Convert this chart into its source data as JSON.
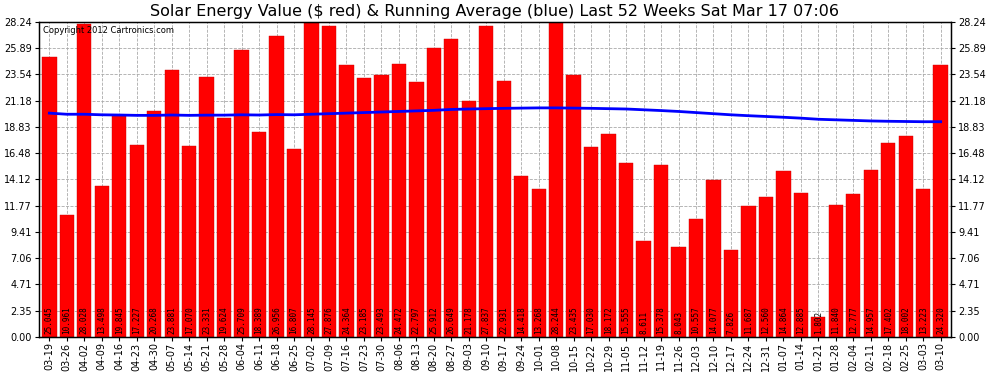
{
  "title": "Solar Energy Value ($ red) & Running Average (blue) Last 52 Weeks Sat Mar 17 07:06",
  "copyright": "Copyright 2012 Cartronics.com",
  "bar_color": "#FF0000",
  "line_color": "#0000FF",
  "background_color": "#FFFFFF",
  "grid_color": "#AAAAAA",
  "yticks": [
    0.0,
    2.35,
    4.71,
    7.06,
    9.41,
    11.77,
    14.12,
    16.48,
    18.83,
    21.18,
    23.54,
    25.89,
    28.24
  ],
  "categories": [
    "03-19",
    "03-26",
    "04-02",
    "04-09",
    "04-16",
    "04-23",
    "04-30",
    "05-07",
    "05-14",
    "05-21",
    "05-28",
    "06-04",
    "06-11",
    "06-18",
    "06-25",
    "07-02",
    "07-09",
    "07-16",
    "07-23",
    "07-30",
    "08-06",
    "08-13",
    "08-20",
    "08-27",
    "09-03",
    "09-10",
    "09-17",
    "09-24",
    "10-01",
    "10-08",
    "10-15",
    "10-22",
    "10-29",
    "11-05",
    "11-12",
    "11-19",
    "11-26",
    "12-03",
    "12-10",
    "12-17",
    "12-24",
    "12-31",
    "01-07",
    "01-14",
    "01-21",
    "01-28",
    "02-04",
    "02-11",
    "02-18",
    "02-25",
    "03-03",
    "03-10"
  ],
  "bar_values": [
    25.045,
    10.961,
    28.028,
    13.498,
    19.845,
    17.227,
    20.268,
    23.881,
    17.07,
    23.331,
    19.624,
    25.709,
    18.389,
    26.956,
    16.807,
    28.145,
    27.876,
    24.364,
    23.185,
    23.493,
    24.472,
    22.797,
    25.912,
    26.649,
    21.178,
    27.837,
    22.931,
    14.418,
    13.268,
    28.244,
    23.435,
    17.03,
    18.172,
    15.555,
    8.611,
    15.378,
    8.043,
    10.557,
    14.077,
    7.826,
    11.687,
    12.56,
    14.864,
    12.885,
    1.802,
    11.84,
    12.777,
    14.957,
    17.402,
    18.002,
    13.223,
    24.32
  ],
  "running_avg": [
    20.05,
    19.95,
    19.95,
    19.9,
    19.88,
    19.85,
    19.85,
    19.88,
    19.85,
    19.87,
    19.87,
    19.9,
    19.88,
    19.92,
    19.9,
    19.95,
    20.0,
    20.05,
    20.1,
    20.15,
    20.2,
    20.25,
    20.3,
    20.38,
    20.42,
    20.45,
    20.48,
    20.5,
    20.52,
    20.52,
    20.5,
    20.48,
    20.45,
    20.42,
    20.35,
    20.28,
    20.2,
    20.1,
    20.0,
    19.9,
    19.82,
    19.75,
    19.68,
    19.6,
    19.5,
    19.45,
    19.4,
    19.35,
    19.32,
    19.3,
    19.28,
    19.28
  ],
  "ylim": [
    0,
    28.24
  ],
  "title_fontsize": 11.5,
  "tick_fontsize": 7,
  "label_fontsize": 5.5
}
